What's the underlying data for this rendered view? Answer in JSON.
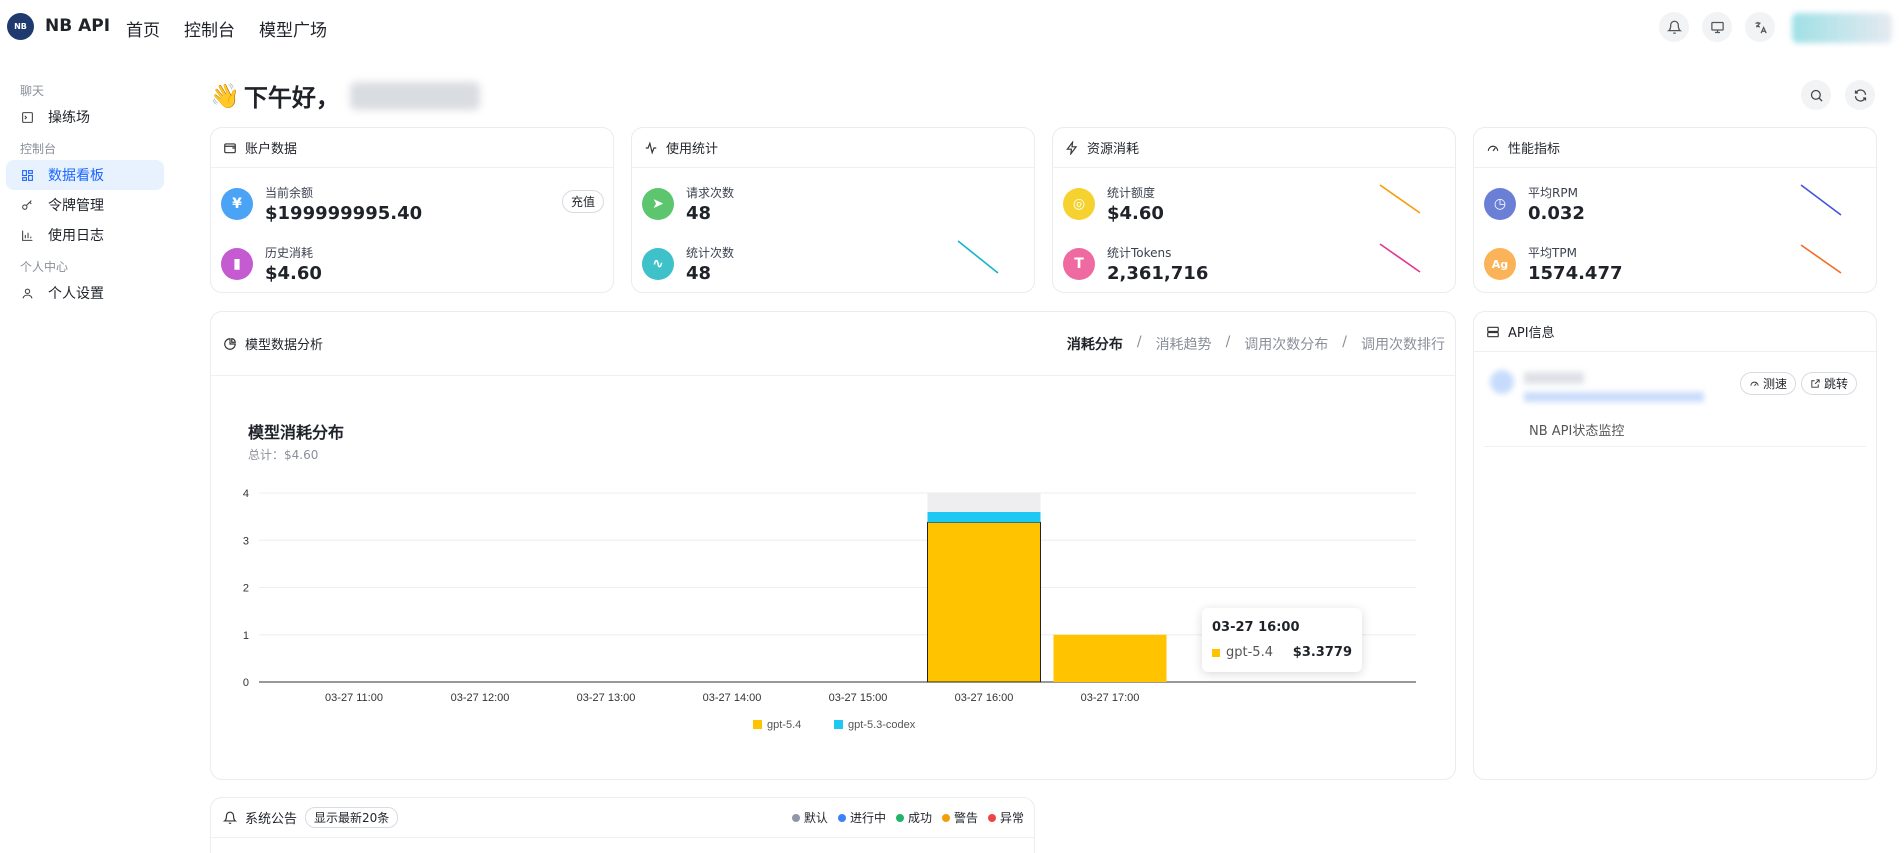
{
  "header": {
    "logo_text": "NB",
    "brand": "NB API",
    "nav": [
      "首页",
      "控制台",
      "模型广场"
    ]
  },
  "sidebar": {
    "group_chat": "聊天",
    "item_playground": "操练场",
    "group_console": "控制台",
    "item_dashboard": "数据看板",
    "item_tokens": "令牌管理",
    "item_logs": "使用日志",
    "group_personal": "个人中心",
    "item_settings": "个人设置"
  },
  "greeting": {
    "emoji": "👋",
    "text": "下午好，"
  },
  "account": {
    "title": "账户数据",
    "balance_label": "当前余额",
    "balance_value": "$199999995.40",
    "recharge": "充值",
    "history_label": "历史消耗",
    "history_value": "$4.60"
  },
  "usage": {
    "title": "使用统计",
    "req_label": "请求次数",
    "req_value": "48",
    "stat_label": "统计次数",
    "stat_value": "48"
  },
  "resource": {
    "title": "资源消耗",
    "quota_label": "统计额度",
    "quota_value": "$4.60",
    "tokens_label": "统计Tokens",
    "tokens_value": "2,361,716"
  },
  "perf": {
    "title": "性能指标",
    "rpm_label": "平均RPM",
    "rpm_value": "0.032",
    "tpm_label": "平均TPM",
    "tpm_value": "1574.477"
  },
  "analysis": {
    "title": "模型数据分析",
    "tabs": [
      "消耗分布",
      "消耗趋势",
      "调用次数分布",
      "调用次数排行"
    ],
    "active_tab": 0
  },
  "chart_data": {
    "type": "bar",
    "stacked": true,
    "title": "模型消耗分布",
    "subtitle": "总计：$4.60",
    "categories": [
      "03-27 11:00",
      "03-27 12:00",
      "03-27 13:00",
      "03-27 14:00",
      "03-27 15:00",
      "03-27 16:00",
      "03-27 17:00"
    ],
    "series": [
      {
        "name": "gpt-5.4",
        "values": [
          0,
          0,
          0,
          0,
          0,
          3.3779,
          1.0
        ],
        "color": "#ffc300"
      },
      {
        "name": "gpt-5.3-codex",
        "values": [
          0,
          0,
          0,
          0,
          0,
          0.22,
          0
        ],
        "color": "#1ec8f2"
      }
    ],
    "ylim": [
      0,
      4
    ],
    "yticks": [
      "4",
      "3",
      "2",
      "1",
      "0"
    ],
    "grid": true,
    "legend": "bottom-center",
    "tooltip": {
      "title": "03-27 16:00",
      "series": "gpt-5.4",
      "value": "$3.3779"
    }
  },
  "api_info": {
    "title": "API信息",
    "speed_test": "测速",
    "jump": "跳转",
    "desc": "NB API状态监控"
  },
  "announce": {
    "title": "系统公告",
    "badge": "显示最新20条",
    "legend": [
      {
        "label": "默认",
        "color": "#8e98a8"
      },
      {
        "label": "进行中",
        "color": "#3b82f6"
      },
      {
        "label": "成功",
        "color": "#22b36b"
      },
      {
        "label": "警告",
        "color": "#f59e0b"
      },
      {
        "label": "异常",
        "color": "#ef4444"
      }
    ]
  }
}
